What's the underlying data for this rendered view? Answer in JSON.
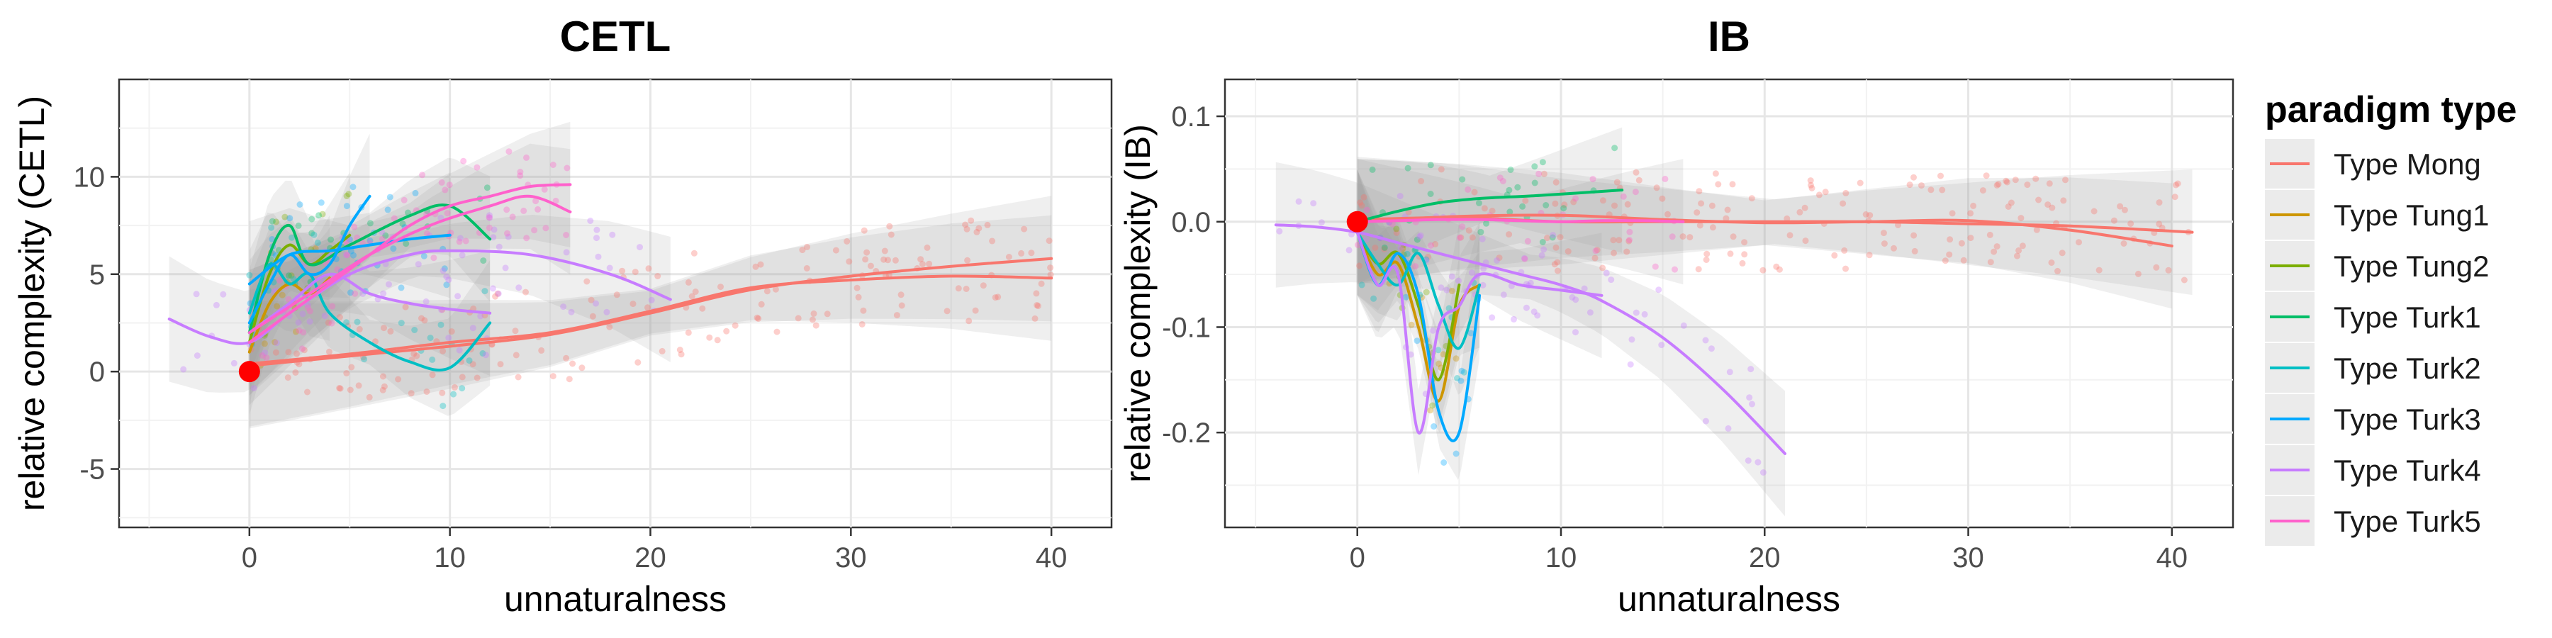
{
  "figure": {
    "legend": {
      "title": "paradigm type",
      "items": [
        {
          "label": "Type Mong",
          "color": "#F8766D"
        },
        {
          "label": "Type Tung1",
          "color": "#CD9600"
        },
        {
          "label": "Type Tung2",
          "color": "#7CAE00"
        },
        {
          "label": "Type Turk1",
          "color": "#00BE67"
        },
        {
          "label": "Type Turk2",
          "color": "#00BFC4"
        },
        {
          "label": "Type Turk3",
          "color": "#00A9FF"
        },
        {
          "label": "Type Turk4",
          "color": "#C77CFF"
        },
        {
          "label": "Type Turk5",
          "color": "#FF61CC"
        }
      ]
    }
  },
  "chart_data": [
    {
      "type": "line",
      "title": "CETL",
      "xlabel": "unnaturalness",
      "ylabel": "relative complexity (CETL)",
      "xlim": [
        -6.5,
        43
      ],
      "ylim": [
        -8,
        15
      ],
      "xticks": [
        0,
        10,
        20,
        30,
        40
      ],
      "xtick_labels": [
        "0",
        "10",
        "20",
        "30",
        "40"
      ],
      "yticks": [
        -5,
        0,
        5,
        10
      ],
      "ytick_labels": [
        "-5",
        "0",
        "5",
        "10"
      ],
      "grid": true,
      "reference_point": {
        "x": 0,
        "y": 0,
        "color": "#FF0000"
      },
      "series": [
        {
          "name": "Type Mong",
          "color": "#F8766D",
          "x": [
            0,
            5,
            10,
            15,
            20,
            25,
            30,
            35,
            40
          ],
          "y": [
            0.3,
            0.8,
            1.3,
            1.9,
            3.0,
            4.2,
            4.9,
            5.4,
            5.8
          ]
        },
        {
          "name": "Type Mong",
          "color": "#F8766D",
          "x": [
            0,
            5,
            10,
            15,
            20,
            25,
            30,
            35,
            40
          ],
          "y": [
            0.4,
            0.9,
            1.5,
            2.0,
            3.1,
            4.3,
            4.7,
            4.9,
            4.8
          ]
        },
        {
          "name": "Type Tung1",
          "color": "#CD9600",
          "x": [
            0,
            1,
            2,
            3,
            4
          ],
          "y": [
            1.0,
            3.5,
            4.5,
            4.0,
            4.8
          ]
        },
        {
          "name": "Type Tung2",
          "color": "#7CAE00",
          "x": [
            0,
            1,
            2,
            3,
            4,
            5
          ],
          "y": [
            1.5,
            5.0,
            6.5,
            5.5,
            6.2,
            7.0
          ]
        },
        {
          "name": "Type Turk1",
          "color": "#00BE67",
          "x": [
            0,
            1,
            2,
            3,
            5,
            8,
            10,
            12
          ],
          "y": [
            2.0,
            6.0,
            7.5,
            5.5,
            6.5,
            8.0,
            8.5,
            6.8
          ]
        },
        {
          "name": "Type Turk2",
          "color": "#00BFC4",
          "x": [
            0,
            1,
            2,
            3,
            4,
            6,
            8,
            10,
            12
          ],
          "y": [
            3.0,
            5.5,
            4.5,
            5.0,
            3.0,
            1.5,
            0.5,
            0.2,
            2.5
          ]
        },
        {
          "name": "Type Turk3",
          "color": "#00A9FF",
          "x": [
            0,
            1,
            2,
            3,
            4,
            5,
            6
          ],
          "y": [
            2.5,
            4.5,
            6.0,
            5.0,
            5.5,
            7.5,
            9.0
          ]
        },
        {
          "name": "Type Turk3",
          "color": "#00A9FF",
          "x": [
            0,
            2,
            4,
            6,
            8,
            10
          ],
          "y": [
            4.5,
            6.0,
            6.2,
            6.5,
            6.8,
            7.0
          ]
        },
        {
          "name": "Type Turk4",
          "color": "#C77CFF",
          "x": [
            -4,
            -2,
            0,
            2,
            5,
            8,
            10,
            14,
            18,
            21
          ],
          "y": [
            2.7,
            1.8,
            1.5,
            3.0,
            5.0,
            6.0,
            6.2,
            6.0,
            5.0,
            3.7
          ]
        },
        {
          "name": "Type Turk4",
          "color": "#C77CFF",
          "x": [
            0,
            2,
            4,
            6,
            8,
            10,
            12
          ],
          "y": [
            2.0,
            3.5,
            5.0,
            4.0,
            3.5,
            3.2,
            3.0
          ]
        },
        {
          "name": "Type Turk5",
          "color": "#FF61CC",
          "x": [
            0,
            2,
            4,
            6,
            8,
            10,
            12,
            14,
            16
          ],
          "y": [
            1.5,
            3.0,
            4.5,
            6.0,
            7.5,
            8.5,
            9.0,
            9.5,
            9.6
          ]
        },
        {
          "name": "Type Turk5",
          "color": "#FF61CC",
          "x": [
            0,
            3,
            6,
            9,
            12,
            14,
            16
          ],
          "y": [
            2.0,
            4.0,
            6.0,
            7.5,
            8.5,
            9.0,
            8.2
          ]
        }
      ]
    },
    {
      "type": "line",
      "title": "IB",
      "xlabel": "unnaturalness",
      "ylabel": "relative complexity (IB)",
      "xlim": [
        -6.5,
        43
      ],
      "ylim": [
        -0.29,
        0.135
      ],
      "xticks": [
        0,
        10,
        20,
        30,
        40
      ],
      "xtick_labels": [
        "0",
        "10",
        "20",
        "30",
        "40"
      ],
      "yticks": [
        -0.2,
        -0.1,
        0.0,
        0.1
      ],
      "ytick_labels": [
        "-0.2",
        "-0.1",
        "0.0",
        "0.1"
      ],
      "grid": true,
      "reference_point": {
        "x": 0,
        "y": 0,
        "color": "#FF0000"
      },
      "series": [
        {
          "name": "Type Mong",
          "color": "#F8766D",
          "x": [
            0,
            5,
            10,
            15,
            20,
            25,
            30,
            35,
            40
          ],
          "y": [
            0.0,
            0.005,
            0.006,
            0.002,
            -0.001,
            0.0,
            0.001,
            -0.008,
            -0.023
          ]
        },
        {
          "name": "Type Mong",
          "color": "#F8766D",
          "x": [
            0,
            5,
            10,
            15,
            20,
            25,
            30,
            35,
            41
          ],
          "y": [
            0.002,
            0.004,
            0.0,
            0.0,
            0.0,
            0.0,
            -0.002,
            -0.004,
            -0.01
          ]
        },
        {
          "name": "Type Tung1",
          "color": "#CD9600",
          "x": [
            0,
            1,
            2,
            3,
            4,
            5,
            6
          ],
          "y": [
            -0.01,
            -0.05,
            -0.04,
            -0.1,
            -0.17,
            -0.08,
            -0.06
          ]
        },
        {
          "name": "Type Tung2",
          "color": "#7CAE00",
          "x": [
            0,
            1,
            2,
            3,
            4,
            5
          ],
          "y": [
            -0.01,
            -0.04,
            -0.03,
            -0.08,
            -0.15,
            -0.06
          ]
        },
        {
          "name": "Type Turk1",
          "color": "#00BE67",
          "x": [
            0,
            2,
            4,
            6,
            9,
            13
          ],
          "y": [
            0.0,
            0.01,
            0.018,
            0.022,
            0.025,
            0.03
          ]
        },
        {
          "name": "Type Turk2",
          "color": "#00BFC4",
          "x": [
            0,
            1,
            2,
            3,
            4,
            5,
            6
          ],
          "y": [
            -0.01,
            -0.04,
            -0.06,
            -0.03,
            -0.08,
            -0.12,
            -0.06
          ]
        },
        {
          "name": "Type Turk3",
          "color": "#00A9FF",
          "x": [
            0,
            1,
            2,
            3,
            4,
            5,
            6
          ],
          "y": [
            -0.01,
            -0.06,
            -0.03,
            -0.07,
            -0.18,
            -0.2,
            -0.07
          ]
        },
        {
          "name": "Type Turk4",
          "color": "#C77CFF",
          "x": [
            -4,
            -2,
            0,
            2,
            4,
            6,
            8,
            10,
            12,
            15,
            18,
            21
          ],
          "y": [
            -0.003,
            -0.005,
            -0.01,
            -0.02,
            -0.03,
            -0.04,
            -0.05,
            -0.06,
            -0.075,
            -0.11,
            -0.16,
            -0.22
          ]
        },
        {
          "name": "Type Turk4",
          "color": "#C77CFF",
          "x": [
            0,
            1,
            2,
            3,
            4,
            5,
            6,
            8,
            10,
            12
          ],
          "y": [
            -0.01,
            -0.06,
            -0.05,
            -0.2,
            -0.1,
            -0.08,
            -0.05,
            -0.06,
            -0.065,
            -0.07
          ]
        },
        {
          "name": "Type Turk5",
          "color": "#FF61CC",
          "x": [
            0,
            2,
            4,
            6,
            8,
            10,
            12,
            14,
            16
          ],
          "y": [
            0.0,
            0.001,
            0.002,
            0.002,
            0.001,
            0.0,
            0.001,
            0.001,
            0.0
          ]
        }
      ]
    }
  ]
}
